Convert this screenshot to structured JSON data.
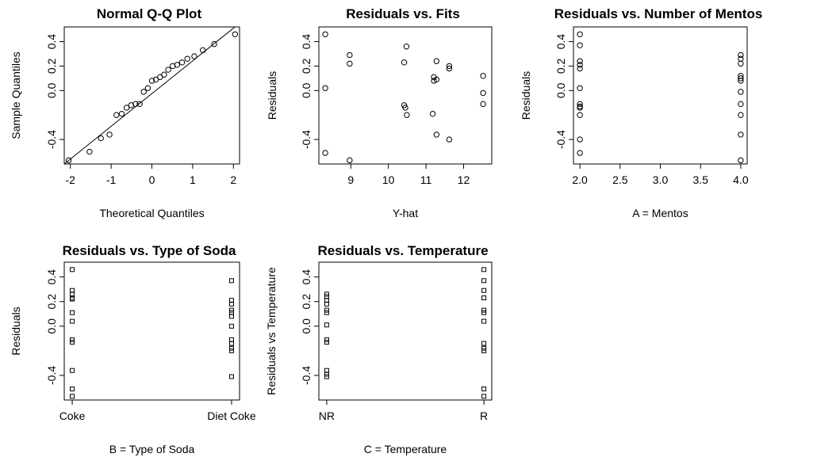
{
  "chart_data": [
    {
      "type": "scatter",
      "title": "Normal Q-Q Plot",
      "xlabel": "Theoretical Quantiles",
      "ylabel": "Sample Quantiles",
      "xlim": [
        -2.15,
        2.15
      ],
      "ylim": [
        -0.6,
        0.52
      ],
      "xticks": [
        {
          "v": -2,
          "label": "-2"
        },
        {
          "v": -1,
          "label": "-1"
        },
        {
          "v": 0,
          "label": "0"
        },
        {
          "v": 1,
          "label": "1"
        },
        {
          "v": 2,
          "label": "2"
        }
      ],
      "yticks": [
        {
          "v": -0.4,
          "label": "-0.4"
        },
        {
          "v": 0.0,
          "label": "0.0"
        },
        {
          "v": 0.2,
          "label": "0.2"
        },
        {
          "v": 0.4,
          "label": "0.4"
        }
      ],
      "marker": "circle",
      "ref_line": {
        "x": [
          -2.15,
          2.15
        ],
        "y": [
          -0.6,
          0.55
        ]
      },
      "points": [
        {
          "x": -2.04,
          "y": -0.57
        },
        {
          "x": -1.53,
          "y": -0.5
        },
        {
          "x": -1.25,
          "y": -0.39
        },
        {
          "x": -1.04,
          "y": -0.36
        },
        {
          "x": -0.87,
          "y": -0.2
        },
        {
          "x": -0.74,
          "y": -0.19
        },
        {
          "x": -0.62,
          "y": -0.14
        },
        {
          "x": -0.51,
          "y": -0.12
        },
        {
          "x": -0.4,
          "y": -0.11
        },
        {
          "x": -0.3,
          "y": -0.11
        },
        {
          "x": -0.2,
          "y": -0.01
        },
        {
          "x": -0.1,
          "y": 0.02
        },
        {
          "x": 0.0,
          "y": 0.08
        },
        {
          "x": 0.1,
          "y": 0.09
        },
        {
          "x": 0.2,
          "y": 0.11
        },
        {
          "x": 0.3,
          "y": 0.13
        },
        {
          "x": 0.4,
          "y": 0.17
        },
        {
          "x": 0.51,
          "y": 0.2
        },
        {
          "x": 0.62,
          "y": 0.21
        },
        {
          "x": 0.74,
          "y": 0.23
        },
        {
          "x": 0.87,
          "y": 0.26
        },
        {
          "x": 1.04,
          "y": 0.28
        },
        {
          "x": 1.25,
          "y": 0.33
        },
        {
          "x": 1.53,
          "y": 0.38
        },
        {
          "x": 2.04,
          "y": 0.46
        }
      ]
    },
    {
      "type": "scatter",
      "title": "Residuals vs. Fits",
      "xlabel": "Y-hat",
      "ylabel": "Residuals",
      "xlim": [
        8.15,
        12.75
      ],
      "ylim": [
        -0.6,
        0.52
      ],
      "xticks": [
        {
          "v": 9,
          "label": "9"
        },
        {
          "v": 10,
          "label": "10"
        },
        {
          "v": 11,
          "label": "11"
        },
        {
          "v": 12,
          "label": "12"
        }
      ],
      "yticks": [
        {
          "v": -0.4,
          "label": "-0.4"
        },
        {
          "v": 0.0,
          "label": "0.0"
        },
        {
          "v": 0.2,
          "label": "0.2"
        },
        {
          "v": 0.4,
          "label": "0.4"
        }
      ],
      "marker": "circle",
      "points": [
        {
          "x": 8.32,
          "y": 0.46
        },
        {
          "x": 8.32,
          "y": 0.02
        },
        {
          "x": 8.32,
          "y": -0.51
        },
        {
          "x": 8.97,
          "y": 0.29
        },
        {
          "x": 8.97,
          "y": 0.22
        },
        {
          "x": 8.97,
          "y": -0.57
        },
        {
          "x": 10.42,
          "y": 0.23
        },
        {
          "x": 10.48,
          "y": 0.36
        },
        {
          "x": 10.42,
          "y": -0.12
        },
        {
          "x": 10.45,
          "y": -0.14
        },
        {
          "x": 10.49,
          "y": -0.2
        },
        {
          "x": 11.21,
          "y": 0.11
        },
        {
          "x": 11.21,
          "y": 0.08
        },
        {
          "x": 11.28,
          "y": 0.09
        },
        {
          "x": 11.28,
          "y": 0.24
        },
        {
          "x": 11.18,
          "y": -0.19
        },
        {
          "x": 11.28,
          "y": -0.36
        },
        {
          "x": 11.62,
          "y": 0.2
        },
        {
          "x": 11.62,
          "y": 0.18
        },
        {
          "x": 11.62,
          "y": -0.4
        },
        {
          "x": 12.52,
          "y": 0.12
        },
        {
          "x": 12.52,
          "y": -0.02
        },
        {
          "x": 12.52,
          "y": -0.11
        }
      ]
    },
    {
      "type": "scatter",
      "title": "Residuals vs. Number of Mentos",
      "xlabel": "A = Mentos",
      "ylabel": "Residuals",
      "xlim": [
        1.92,
        4.08
      ],
      "ylim": [
        -0.6,
        0.52
      ],
      "xticks": [
        {
          "v": 2.0,
          "label": "2.0"
        },
        {
          "v": 2.5,
          "label": "2.5"
        },
        {
          "v": 3.0,
          "label": "3.0"
        },
        {
          "v": 3.5,
          "label": "3.5"
        },
        {
          "v": 4.0,
          "label": "4.0"
        }
      ],
      "yticks": [
        {
          "v": -0.4,
          "label": "-0.4"
        },
        {
          "v": 0.0,
          "label": "0.0"
        },
        {
          "v": 0.2,
          "label": "0.2"
        },
        {
          "v": 0.4,
          "label": "0.4"
        }
      ],
      "marker": "circle",
      "points": [
        {
          "x": 2,
          "y": 0.46
        },
        {
          "x": 2,
          "y": 0.37
        },
        {
          "x": 2,
          "y": 0.24
        },
        {
          "x": 2,
          "y": 0.21
        },
        {
          "x": 2,
          "y": 0.18
        },
        {
          "x": 2,
          "y": 0.02
        },
        {
          "x": 2,
          "y": -0.11
        },
        {
          "x": 2,
          "y": -0.13
        },
        {
          "x": 2,
          "y": -0.14
        },
        {
          "x": 2,
          "y": -0.2
        },
        {
          "x": 2,
          "y": -0.4
        },
        {
          "x": 2,
          "y": -0.51
        },
        {
          "x": 4,
          "y": 0.29
        },
        {
          "x": 4,
          "y": 0.26
        },
        {
          "x": 4,
          "y": 0.22
        },
        {
          "x": 4,
          "y": 0.12
        },
        {
          "x": 4,
          "y": 0.1
        },
        {
          "x": 4,
          "y": 0.08
        },
        {
          "x": 4,
          "y": -0.01
        },
        {
          "x": 4,
          "y": -0.11
        },
        {
          "x": 4,
          "y": -0.2
        },
        {
          "x": 4,
          "y": -0.36
        },
        {
          "x": 4,
          "y": -0.57
        }
      ]
    },
    {
      "type": "scatter",
      "title": "Residuals vs. Type of Soda",
      "xlabel": "B = Type of Soda",
      "ylabel": "Residuals",
      "xlim": [
        0.95,
        2.05
      ],
      "ylim": [
        -0.6,
        0.52
      ],
      "xticks": [
        {
          "v": 1,
          "label": "Coke"
        },
        {
          "v": 2,
          "label": "Diet Coke"
        }
      ],
      "yticks": [
        {
          "v": -0.4,
          "label": "-0.4"
        },
        {
          "v": 0.0,
          "label": "0.0"
        },
        {
          "v": 0.2,
          "label": "0.2"
        },
        {
          "v": 0.4,
          "label": "0.4"
        }
      ],
      "marker": "square",
      "points": [
        {
          "x": 1,
          "y": 0.46
        },
        {
          "x": 1,
          "y": 0.29
        },
        {
          "x": 1,
          "y": 0.26
        },
        {
          "x": 1,
          "y": 0.23
        },
        {
          "x": 1,
          "y": 0.22
        },
        {
          "x": 1,
          "y": 0.11
        },
        {
          "x": 1,
          "y": 0.04
        },
        {
          "x": 1,
          "y": -0.11
        },
        {
          "x": 1,
          "y": -0.13
        },
        {
          "x": 1,
          "y": -0.36
        },
        {
          "x": 1,
          "y": -0.51
        },
        {
          "x": 1,
          "y": -0.57
        },
        {
          "x": 2,
          "y": 0.37
        },
        {
          "x": 2,
          "y": 0.21
        },
        {
          "x": 2,
          "y": 0.18
        },
        {
          "x": 2,
          "y": 0.13
        },
        {
          "x": 2,
          "y": 0.11
        },
        {
          "x": 2,
          "y": 0.08
        },
        {
          "x": 2,
          "y": 0.0
        },
        {
          "x": 2,
          "y": -0.11
        },
        {
          "x": 2,
          "y": -0.14
        },
        {
          "x": 2,
          "y": -0.18
        },
        {
          "x": 2,
          "y": -0.2
        },
        {
          "x": 2,
          "y": -0.41
        }
      ]
    },
    {
      "type": "scatter",
      "title": "Residuals vs. Temperature",
      "xlabel": "C = Temperature",
      "ylabel": "Residuals vs Temperature",
      "xlim": [
        0.95,
        2.05
      ],
      "ylim": [
        -0.6,
        0.52
      ],
      "xticks": [
        {
          "v": 1,
          "label": "NR"
        },
        {
          "v": 2,
          "label": "R"
        }
      ],
      "yticks": [
        {
          "v": -0.4,
          "label": "-0.4"
        },
        {
          "v": 0.0,
          "label": "0.0"
        },
        {
          "v": 0.2,
          "label": "0.2"
        },
        {
          "v": 0.4,
          "label": "0.4"
        }
      ],
      "marker": "square",
      "points": [
        {
          "x": 1,
          "y": 0.26
        },
        {
          "x": 1,
          "y": 0.24
        },
        {
          "x": 1,
          "y": 0.21
        },
        {
          "x": 1,
          "y": 0.18
        },
        {
          "x": 1,
          "y": 0.13
        },
        {
          "x": 1,
          "y": 0.11
        },
        {
          "x": 1,
          "y": 0.01
        },
        {
          "x": 1,
          "y": -0.11
        },
        {
          "x": 1,
          "y": -0.13
        },
        {
          "x": 1,
          "y": -0.36
        },
        {
          "x": 1,
          "y": -0.39
        },
        {
          "x": 1,
          "y": -0.41
        },
        {
          "x": 2,
          "y": 0.46
        },
        {
          "x": 2,
          "y": 0.37
        },
        {
          "x": 2,
          "y": 0.29
        },
        {
          "x": 2,
          "y": 0.23
        },
        {
          "x": 2,
          "y": 0.13
        },
        {
          "x": 2,
          "y": 0.11
        },
        {
          "x": 2,
          "y": 0.04
        },
        {
          "x": 2,
          "y": -0.14
        },
        {
          "x": 2,
          "y": -0.18
        },
        {
          "x": 2,
          "y": -0.2
        },
        {
          "x": 2,
          "y": -0.51
        },
        {
          "x": 2,
          "y": -0.57
        }
      ]
    }
  ]
}
